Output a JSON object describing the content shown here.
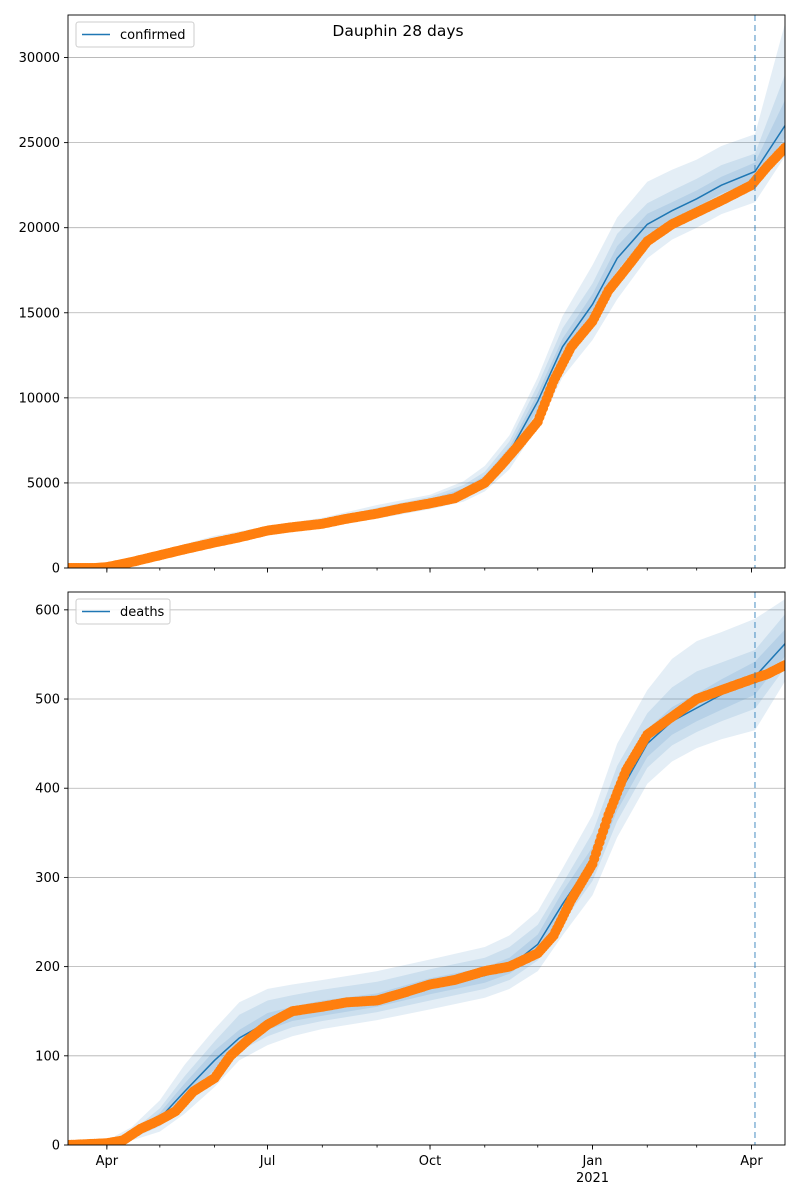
{
  "figure": {
    "title": "Dauphin 28 days"
  },
  "chart_data": [
    {
      "type": "line",
      "title": "Dauphin 28 days",
      "legend": {
        "entries": [
          "confirmed"
        ],
        "placement": "top-left"
      },
      "grid": {
        "y": true,
        "x": false
      },
      "xlim": [
        "2020-03-10",
        "2021-04-20"
      ],
      "ylim": [
        0,
        32500
      ],
      "yticks": [
        0,
        5000,
        10000,
        15000,
        20000,
        25000,
        30000
      ],
      "xticks": [
        {
          "date": "2020-04-01",
          "label": "Apr"
        },
        {
          "date": "2020-07-01",
          "label": "Jul"
        },
        {
          "date": "2020-10-01",
          "label": "Oct"
        },
        {
          "date": "2021-01-01",
          "label": "Jan",
          "sublabel": "2021"
        },
        {
          "date": "2021-04-01",
          "label": "Apr"
        }
      ],
      "forecast_start": "2021-04-03",
      "colors": {
        "model": "#1f77b4",
        "observed": "#ff7f0e",
        "band": "#1f77b4"
      },
      "series": [
        {
          "name": "confirmed",
          "role": "model",
          "x": [
            "2020-03-10",
            "2020-04-01",
            "2020-05-01",
            "2020-06-01",
            "2020-07-01",
            "2020-08-01",
            "2020-09-01",
            "2020-10-01",
            "2020-10-20",
            "2020-11-01",
            "2020-11-15",
            "2020-12-01",
            "2020-12-15",
            "2021-01-01",
            "2021-01-15",
            "2021-02-01",
            "2021-02-15",
            "2021-03-01",
            "2021-03-15",
            "2021-04-03",
            "2021-04-20"
          ],
          "y": [
            0,
            100,
            800,
            1600,
            2200,
            2700,
            3300,
            3900,
            4500,
            5200,
            6800,
            9800,
            13000,
            15500,
            18200,
            20200,
            21000,
            21700,
            22500,
            23300,
            26000
          ],
          "bands": [
            {
              "lower": [
                0,
                50,
                600,
                1400,
                2000,
                2450,
                2900,
                3450,
                3900,
                4500,
                5800,
                8300,
                11200,
                13400,
                15800,
                18200,
                19300,
                20000,
                20800,
                21500,
                24200
              ],
              "upper": [
                0,
                150,
                1000,
                1900,
                2450,
                2950,
                3700,
                4300,
                5100,
                6000,
                7800,
                11200,
                14800,
                17800,
                20600,
                22700,
                23400,
                24000,
                24800,
                25500,
                32000
              ]
            },
            {
              "lower": [
                0,
                70,
                680,
                1480,
                2080,
                2560,
                3060,
                3620,
                4120,
                4740,
                6160,
                8840,
                11920,
                14280,
                16760,
                18960,
                20020,
                20720,
                21520,
                22240,
                24700
              ],
              "upper": [
                0,
                130,
                920,
                1720,
                2320,
                2840,
                3540,
                4180,
                4880,
                5660,
                7440,
                10760,
                14080,
                16720,
                19640,
                21440,
                22180,
                22880,
                23680,
                24360,
                29000
              ]
            },
            {
              "lower": [
                0,
                85,
                740,
                1540,
                2140,
                2640,
                3180,
                3760,
                4310,
                4970,
                6480,
                9320,
                12520,
                14900,
                17480,
                19580,
                20510,
                21210,
                22010,
                22770,
                25300
              ],
              "upper": [
                0,
                115,
                860,
                1660,
                2260,
                2760,
                3420,
                4040,
                4690,
                5430,
                7120,
                10280,
                13480,
                16100,
                18920,
                20820,
                21490,
                22190,
                22990,
                23830,
                27500
              ]
            }
          ]
        },
        {
          "name": "",
          "role": "observed",
          "x": [
            "2020-03-10",
            "2020-03-25",
            "2020-04-01",
            "2020-04-15",
            "2020-05-01",
            "2020-05-15",
            "2020-06-01",
            "2020-06-15",
            "2020-07-01",
            "2020-07-15",
            "2020-08-01",
            "2020-08-15",
            "2020-09-01",
            "2020-09-15",
            "2020-10-01",
            "2020-10-15",
            "2020-11-01",
            "2020-11-10",
            "2020-11-20",
            "2020-12-01",
            "2020-12-10",
            "2020-12-20",
            "2021-01-01",
            "2021-01-10",
            "2021-01-20",
            "2021-02-01",
            "2021-02-15",
            "2021-03-01",
            "2021-03-15",
            "2021-04-01",
            "2021-04-10",
            "2021-04-20"
          ],
          "y": [
            0,
            0,
            50,
            350,
            750,
            1100,
            1500,
            1800,
            2200,
            2400,
            2600,
            2900,
            3200,
            3500,
            3800,
            4100,
            5000,
            6000,
            7200,
            8600,
            11000,
            13000,
            14500,
            16300,
            17600,
            19200,
            20200,
            20900,
            21600,
            22500,
            23600,
            24700
          ]
        }
      ]
    },
    {
      "type": "line",
      "title": "",
      "legend": {
        "entries": [
          "deaths"
        ],
        "placement": "top-left"
      },
      "grid": {
        "y": true,
        "x": false
      },
      "xlim": [
        "2020-03-10",
        "2021-04-20"
      ],
      "ylim": [
        0,
        620
      ],
      "yticks": [
        0,
        100,
        200,
        300,
        400,
        500,
        600
      ],
      "xticks": [
        {
          "date": "2020-04-01",
          "label": "Apr"
        },
        {
          "date": "2020-07-01",
          "label": "Jul"
        },
        {
          "date": "2020-10-01",
          "label": "Oct"
        },
        {
          "date": "2021-01-01",
          "label": "Jan",
          "sublabel": "2021"
        },
        {
          "date": "2021-04-01",
          "label": "Apr"
        }
      ],
      "forecast_start": "2021-04-03",
      "colors": {
        "model": "#1f77b4",
        "observed": "#ff7f0e",
        "band": "#1f77b4"
      },
      "series": [
        {
          "name": "deaths",
          "role": "model",
          "x": [
            "2020-03-10",
            "2020-04-01",
            "2020-04-15",
            "2020-05-01",
            "2020-05-15",
            "2020-06-01",
            "2020-06-15",
            "2020-07-01",
            "2020-07-15",
            "2020-08-01",
            "2020-09-01",
            "2020-10-01",
            "2020-11-01",
            "2020-11-15",
            "2020-12-01",
            "2020-12-15",
            "2021-01-01",
            "2021-01-15",
            "2021-02-01",
            "2021-02-15",
            "2021-03-01",
            "2021-03-15",
            "2021-04-03",
            "2021-04-20"
          ],
          "y": [
            0,
            2,
            10,
            30,
            60,
            95,
            120,
            138,
            147,
            153,
            162,
            178,
            190,
            200,
            225,
            270,
            320,
            390,
            450,
            475,
            490,
            505,
            525,
            562
          ],
          "bands": [
            {
              "lower": [
                0,
                0,
                5,
                15,
                35,
                65,
                95,
                112,
                122,
                130,
                140,
                152,
                165,
                175,
                195,
                235,
                280,
                345,
                405,
                430,
                445,
                455,
                465,
                520
              ],
              "upper": [
                0,
                5,
                20,
                50,
                90,
                130,
                160,
                175,
                180,
                185,
                195,
                208,
                222,
                235,
                262,
                310,
                370,
                450,
                510,
                545,
                565,
                575,
                590,
                612
              ]
            },
            {
              "lower": [
                0,
                1,
                7,
                21,
                45,
                77,
                105,
                122,
                132,
                139,
                149,
                162,
                175,
                185,
                207,
                249,
                296,
                363,
                423,
                448,
                463,
                475,
                489,
                535
              ],
              "upper": [
                0,
                4,
                15,
                41,
                77,
                116,
                146,
                162,
                168,
                174,
                183,
                197,
                210,
                222,
                247,
                293,
                350,
                425,
                484,
                513,
                531,
                541,
                555,
                595
              ]
            },
            {
              "lower": [
                0,
                1,
                8,
                25,
                51,
                85,
                112,
                129,
                139,
                145,
                155,
                169,
                182,
                192,
                215,
                258,
                307,
                375,
                435,
                460,
                475,
                488,
                505,
                548
              ],
              "upper": [
                0,
                3,
                13,
                36,
                69,
                106,
                129,
                148,
                155,
                162,
                170,
                187,
                199,
                210,
                236,
                284,
                334,
                406,
                466,
                491,
                506,
                522,
                542,
                578
              ]
            }
          ]
        },
        {
          "name": "",
          "role": "observed",
          "x": [
            "2020-03-10",
            "2020-04-01",
            "2020-04-10",
            "2020-04-20",
            "2020-05-01",
            "2020-05-10",
            "2020-05-20",
            "2020-06-01",
            "2020-06-10",
            "2020-06-20",
            "2020-07-01",
            "2020-07-15",
            "2020-08-01",
            "2020-08-15",
            "2020-09-01",
            "2020-09-15",
            "2020-10-01",
            "2020-10-15",
            "2020-11-01",
            "2020-11-15",
            "2020-12-01",
            "2020-12-10",
            "2020-12-20",
            "2021-01-01",
            "2021-01-10",
            "2021-01-20",
            "2021-02-01",
            "2021-02-15",
            "2021-03-01",
            "2021-03-15",
            "2021-04-01",
            "2021-04-10",
            "2021-04-20"
          ],
          "y": [
            0,
            2,
            5,
            18,
            28,
            38,
            60,
            75,
            100,
            118,
            135,
            150,
            155,
            160,
            162,
            170,
            180,
            185,
            195,
            200,
            215,
            235,
            275,
            315,
            370,
            420,
            460,
            480,
            500,
            510,
            522,
            528,
            538
          ]
        }
      ]
    }
  ]
}
